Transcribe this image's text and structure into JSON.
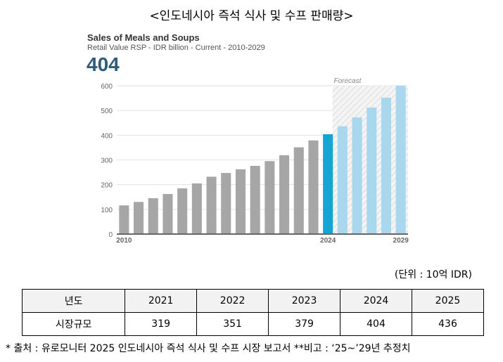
{
  "page_title": "<인도네시아 즉석 식사 및 수프 판매량>",
  "chart_data": {
    "type": "bar",
    "title": "Sales of Meals and Soups",
    "subtitle": "Retail Value RSP - IDR billion - Current - 2010-2029",
    "highlight_value": "404",
    "forecast_label": "Forecast",
    "years": [
      2010,
      2011,
      2012,
      2013,
      2014,
      2015,
      2016,
      2017,
      2018,
      2019,
      2020,
      2021,
      2022,
      2023,
      2024,
      2025,
      2026,
      2027,
      2028,
      2029
    ],
    "values": [
      116,
      130,
      145,
      162,
      185,
      205,
      232,
      247,
      262,
      276,
      295,
      319,
      351,
      379,
      404,
      436,
      472,
      512,
      552,
      600
    ],
    "x_tick_labels": [
      {
        "year": 2010,
        "label": "2010"
      },
      {
        "year": 2024,
        "label": "2024"
      },
      {
        "year": 2029,
        "label": "2029"
      }
    ],
    "y_ticks": [
      0,
      100,
      200,
      300,
      400,
      500,
      600
    ],
    "ylim": [
      0,
      600
    ],
    "highlight_year": 2024,
    "forecast_start": 2025,
    "colors": {
      "actual": "#a6a6a6",
      "highlight": "#14a5d2",
      "forecast": "#a9d8ee",
      "axis_text": "#666666",
      "grid": "#e2e2e2"
    }
  },
  "unit_note": "(단위 : 10억 IDR)",
  "table": {
    "header_label": "년도",
    "row_label": "시장규모",
    "years": [
      "2021",
      "2022",
      "2023",
      "2024",
      "2025"
    ],
    "values": [
      "319",
      "351",
      "379",
      "404",
      "436"
    ]
  },
  "source_note": "* 출처 : 유로모니터 2025 인도네시아 즉석 식사 및 수프 시장 보고서 **비고 : ‘25~’29년 추정치"
}
